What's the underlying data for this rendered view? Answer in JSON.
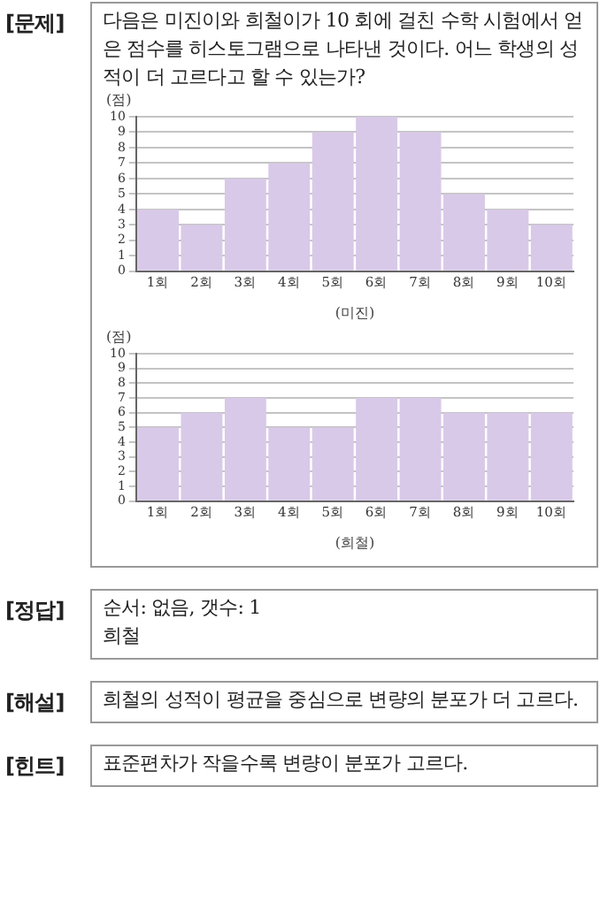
{
  "chart_data": [
    {
      "type": "bar",
      "title": "다음은 미진이와 희철이가 10 회에 걸친 수학 시험에서 얻은 점수를 히스토그램으로 나타낸 것이다. 어느 학생의 성적이 더 고르다고 할 수 있는가?",
      "ylabel": "(점)",
      "xlabel": "(미진)",
      "annotations": [
        "[문제]"
      ],
      "categories": [
        "1회",
        "2회",
        "3회",
        "4회",
        "5회",
        "6회",
        "7회",
        "8회",
        "9회",
        "10회"
      ],
      "values": [
        4,
        3,
        6,
        7,
        9,
        10,
        9,
        5,
        4,
        3
      ],
      "color": "#d9c9e8",
      "ylim": [
        0,
        10
      ],
      "yticks": [
        0,
        1,
        2,
        3,
        4,
        5,
        6,
        7,
        8,
        9,
        10
      ],
      "grid": "y"
    },
    {
      "type": "bar",
      "ylabel": "(점)",
      "xlabel": "(희철)",
      "annotations": [
        "[정답]",
        "순서: 없음,   갯수: 1\n희철",
        "[해설]",
        "희철의 성적이 평균을 중심으로 변량의 분포가 더 고르다.",
        "[힌트]",
        "표준편차가 작을수록 변량이 분포가 고르다."
      ],
      "categories": [
        "1회",
        "2회",
        "3회",
        "4회",
        "5회",
        "6회",
        "7회",
        "8회",
        "9회",
        "10회"
      ],
      "values": [
        5,
        6,
        7,
        5,
        5,
        7,
        7,
        6,
        6,
        6
      ],
      "color": "#d9c9e8",
      "ylim": [
        0,
        10
      ],
      "yticks": [
        0,
        1,
        2,
        3,
        4,
        5,
        6,
        7,
        8,
        9,
        10
      ],
      "grid": "y"
    }
  ]
}
